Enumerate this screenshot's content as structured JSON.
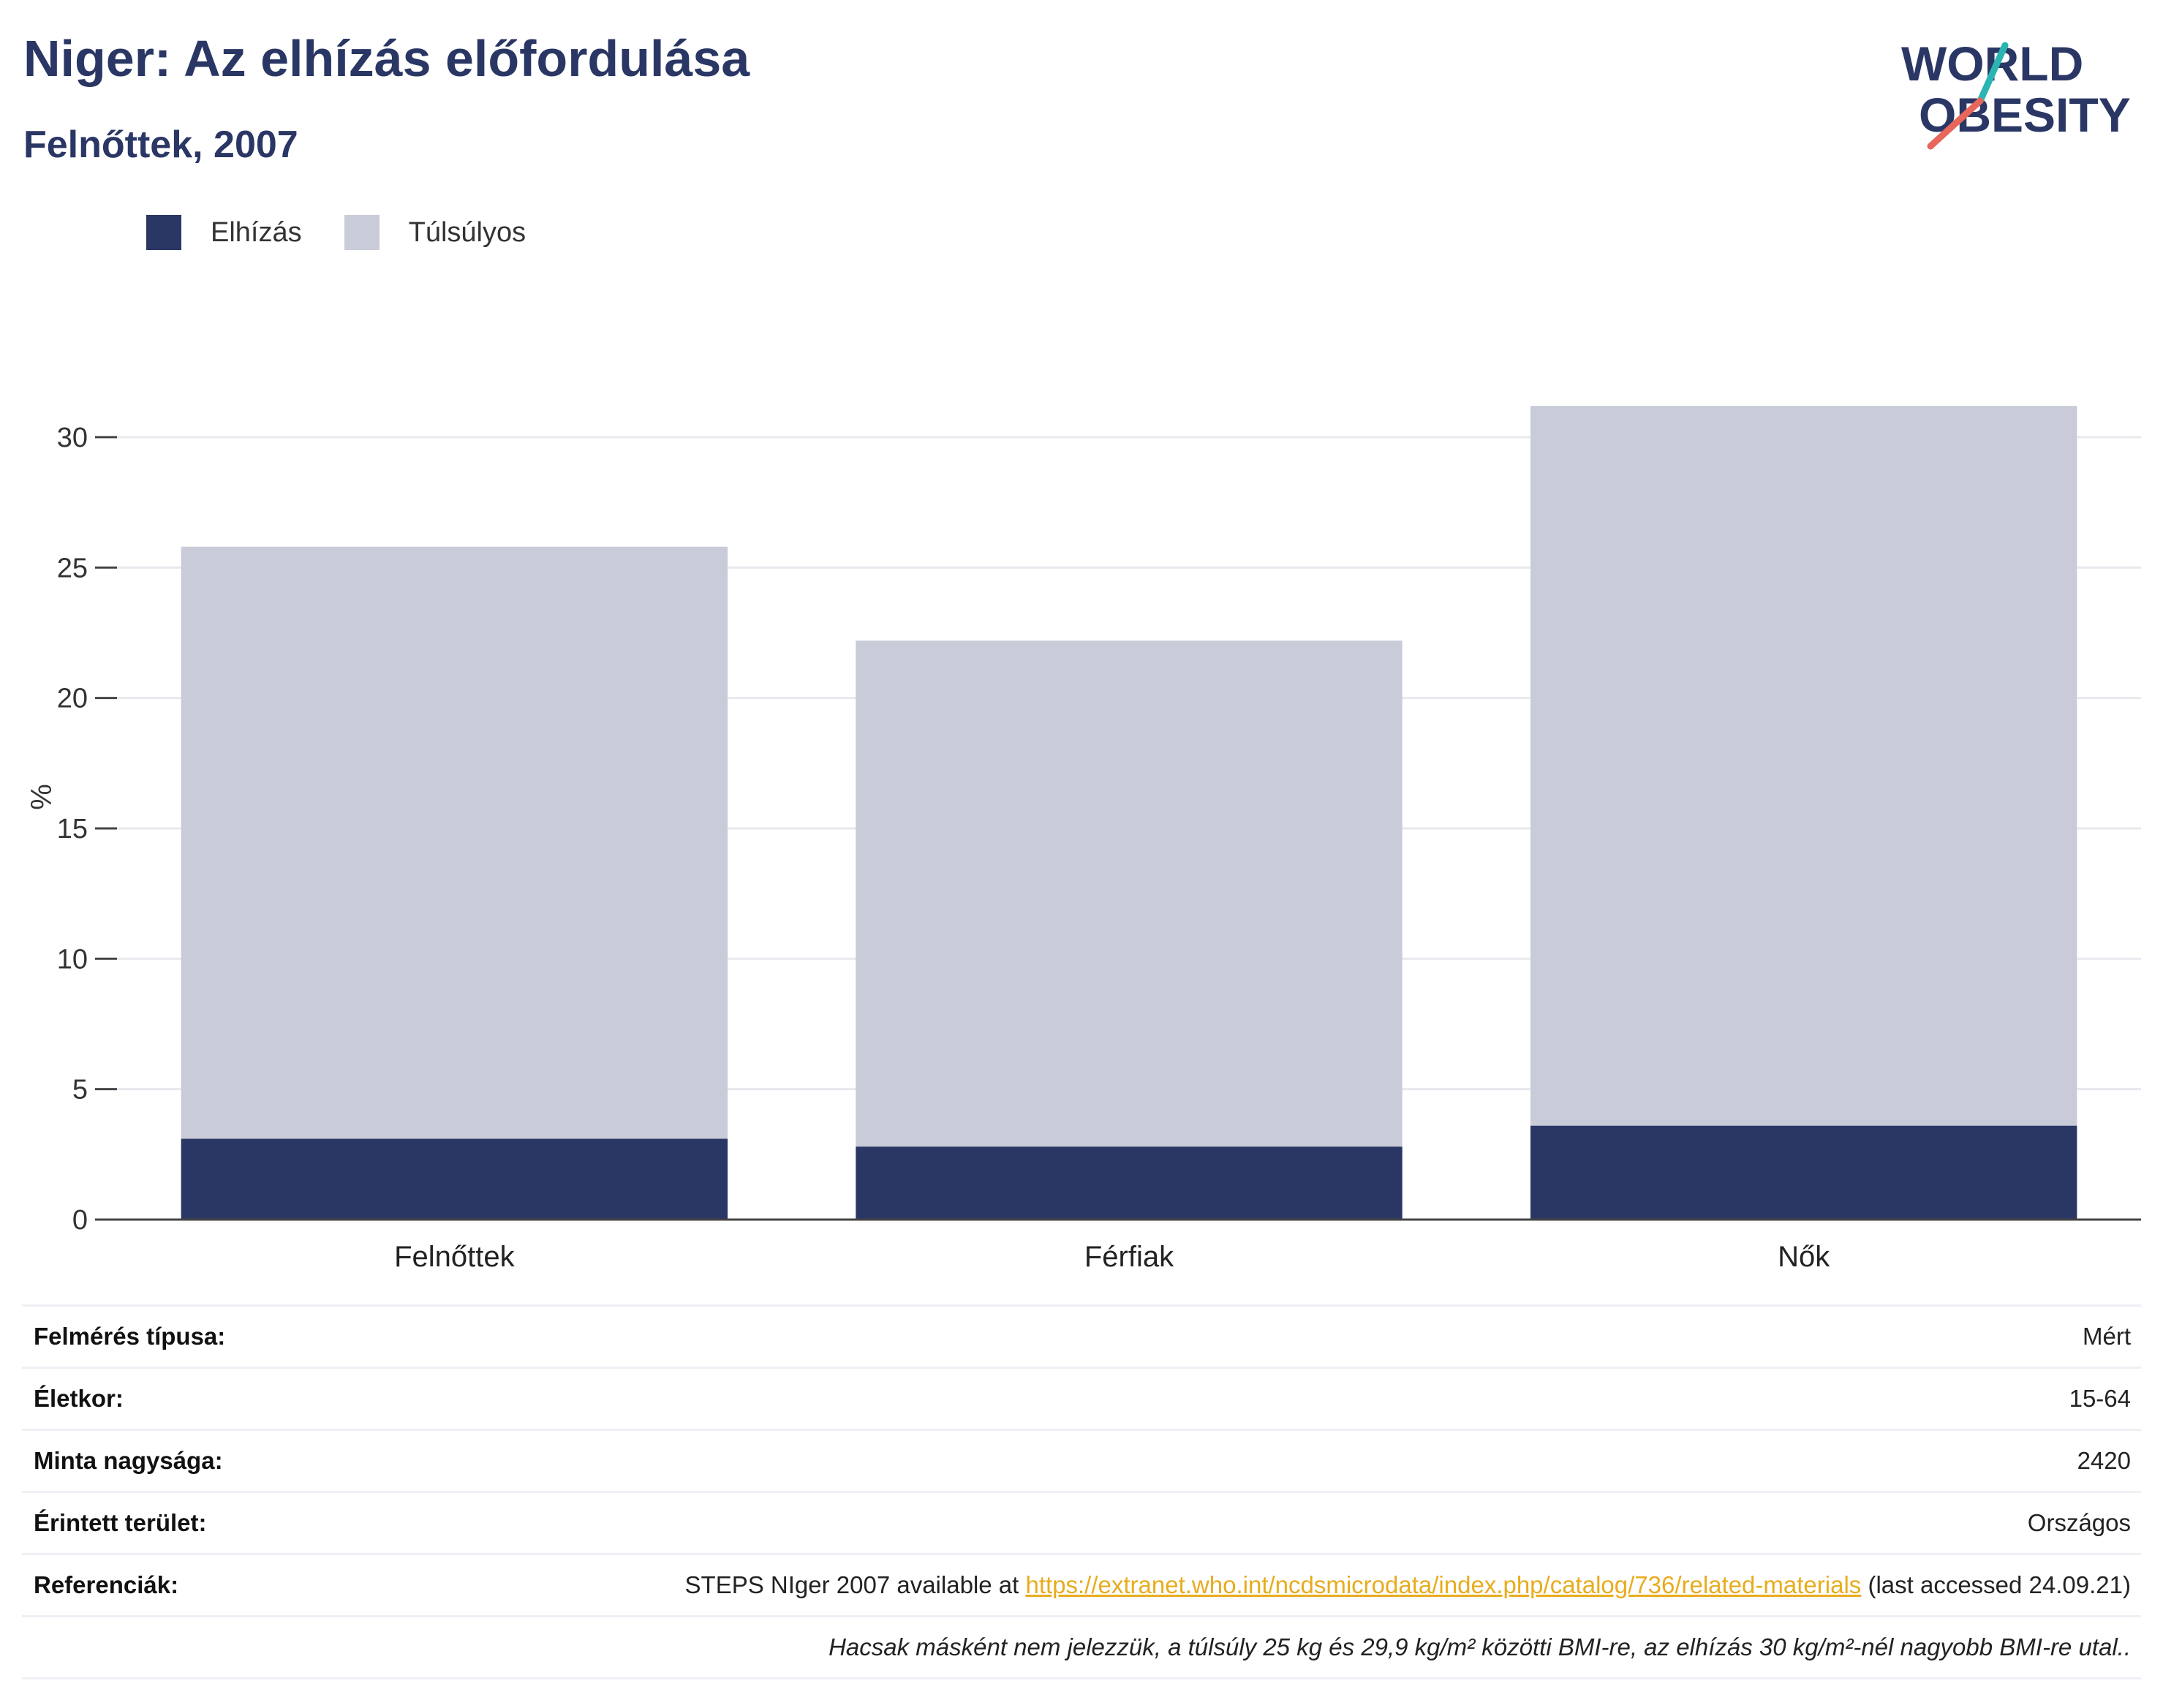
{
  "header": {
    "title": "Niger: Az elhízás előfordulása",
    "subtitle": "Felnőttek, 2007"
  },
  "logo": {
    "line1": "WORLD",
    "line2": "OBESITY"
  },
  "colors": {
    "obesity": "#2a3765",
    "overweight": "#c9ccd8",
    "accent_teal": "#2bb5b2",
    "accent_coral": "#e8665a",
    "link": "#e8ac1d"
  },
  "legend": [
    {
      "label": "Elhízás",
      "color": "#2a3765"
    },
    {
      "label": "Túlsúlyos",
      "color": "#c9ccd8"
    }
  ],
  "chart_data": {
    "type": "bar",
    "stacked": true,
    "categories": [
      "Felnőttek",
      "Férfiak",
      "Nők"
    ],
    "series": [
      {
        "name": "Elhízás",
        "values": [
          3.1,
          2.8,
          3.6
        ]
      },
      {
        "name": "Túlsúlyos",
        "values": [
          22.7,
          19.4,
          27.6
        ]
      }
    ],
    "ylabel": "%",
    "ylim": [
      0,
      32
    ],
    "yticks": [
      0,
      5,
      10,
      15,
      20,
      25,
      30
    ],
    "grid": true,
    "legend_position": "top-left"
  },
  "info": {
    "rows": [
      {
        "key": "Felmérés típusa:",
        "value": "Mért"
      },
      {
        "key": "Életkor:",
        "value": "15-64"
      },
      {
        "key": "Minta nagysága:",
        "value": "2420"
      },
      {
        "key": "Érintett terület:",
        "value": "Országos"
      }
    ],
    "reference": {
      "key": "Referenciák:",
      "prefix": "STEPS NIger 2007 available at ",
      "link": "https://extranet.who.int/ncdsmicrodata/index.php/catalog/736/related-materials",
      "suffix": " (last accessed 24.09.21)"
    },
    "note": "Hacsak másként nem jelezzük, a túlsúly 25 kg és 29,9 kg/m² közötti BMI-re, az elhízás 30 kg/m²-nél nagyobb BMI-re utal.."
  }
}
